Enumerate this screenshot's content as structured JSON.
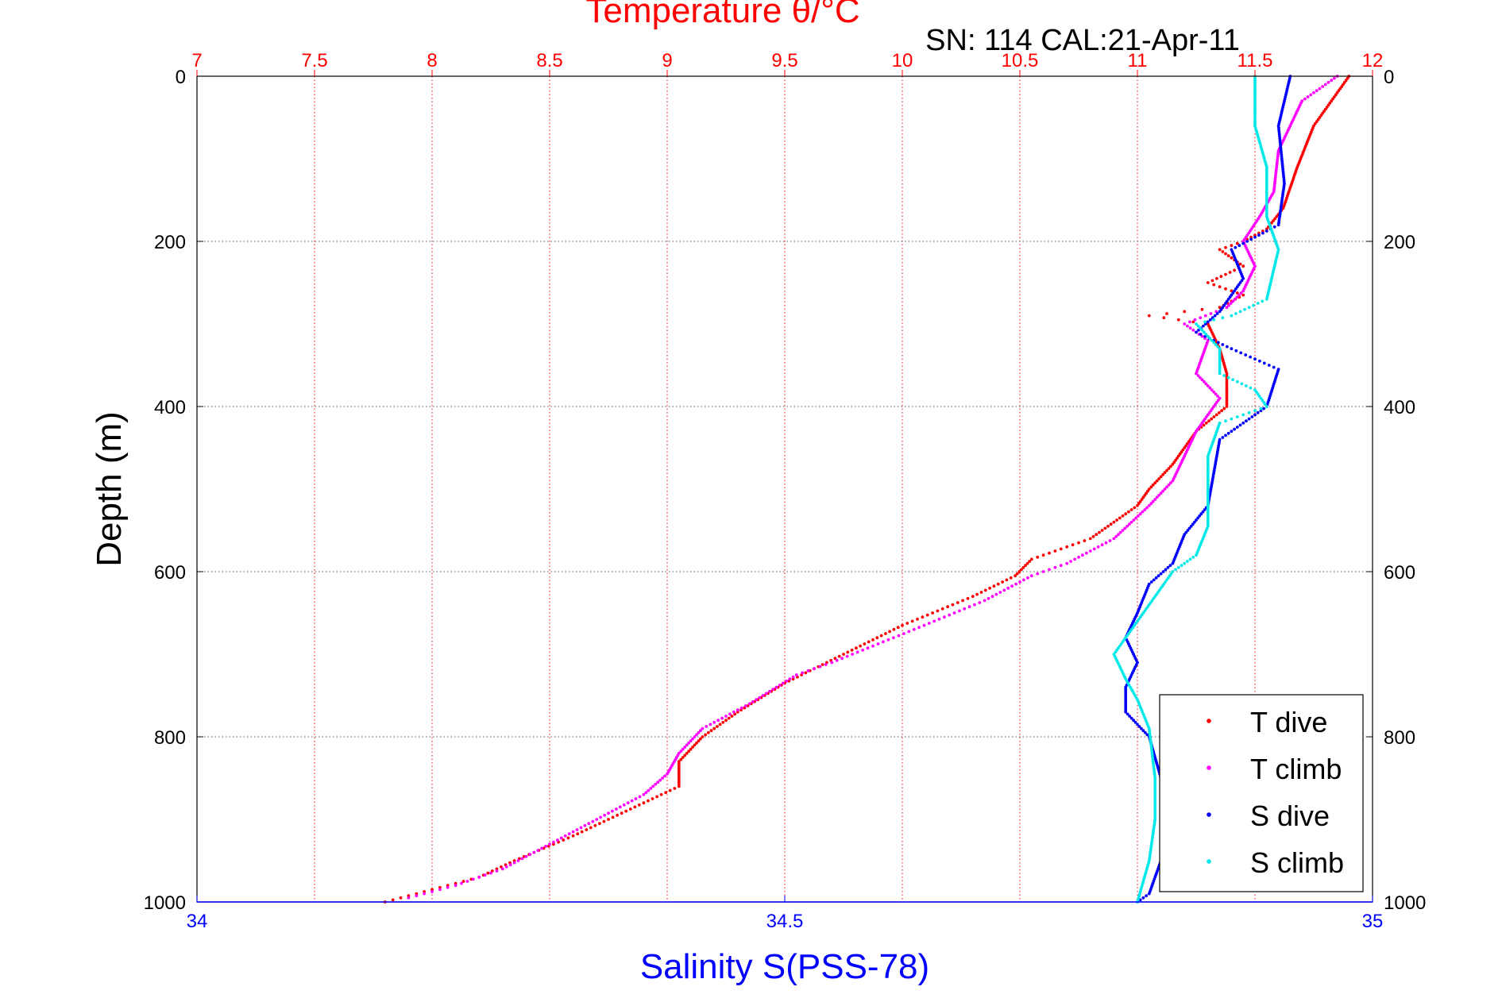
{
  "chart_data": {
    "type": "scatter",
    "top_title": "Temperature θ/°C",
    "subtitle": "SN: 114  CAL:21-Apr-11",
    "ylabel": "Depth (m)",
    "xlabel_bottom": "Salinity S(PSS-78)",
    "ylim": [
      0,
      1000
    ],
    "y_reversed": true,
    "y_ticks": [
      0,
      200,
      400,
      600,
      800,
      1000
    ],
    "temp_xlim": [
      7,
      12
    ],
    "temp_ticks": [
      7,
      7.5,
      8,
      8.5,
      9,
      9.5,
      10,
      10.5,
      11,
      11.5,
      12
    ],
    "sal_xlim": [
      34,
      35
    ],
    "sal_ticks": [
      34,
      34.5,
      35
    ],
    "grid": true,
    "legend_position": "bottom-right",
    "colors": {
      "temperature_axis": "#ff0000",
      "salinity_axis": "#0000ff",
      "t_dive": "#ff0000",
      "t_climb": "#ff00ff",
      "s_dive": "#0000ff",
      "s_climb": "#00e8e8"
    },
    "series": [
      {
        "name": "T dive",
        "axis": "temperature",
        "color_key": "t_dive",
        "points": [
          [
            11.9,
            0
          ],
          [
            11.85,
            20
          ],
          [
            11.75,
            60
          ],
          [
            11.68,
            110
          ],
          [
            11.62,
            160
          ],
          [
            11.55,
            185
          ],
          [
            11.45,
            200
          ],
          [
            11.35,
            210
          ],
          [
            11.45,
            230
          ],
          [
            11.3,
            250
          ],
          [
            11.45,
            265
          ],
          [
            11.35,
            280
          ],
          [
            11.05,
            290
          ],
          [
            11.3,
            300
          ],
          [
            11.35,
            330
          ],
          [
            11.38,
            360
          ],
          [
            11.38,
            400
          ],
          [
            11.25,
            430
          ],
          [
            11.15,
            470
          ],
          [
            11.05,
            500
          ],
          [
            11.0,
            520
          ],
          [
            10.8,
            560
          ],
          [
            10.55,
            585
          ],
          [
            10.48,
            605
          ],
          [
            10.3,
            630
          ],
          [
            10.0,
            665
          ],
          [
            9.75,
            700
          ],
          [
            9.5,
            735
          ],
          [
            9.3,
            770
          ],
          [
            9.15,
            800
          ],
          [
            9.05,
            830
          ],
          [
            9.05,
            860
          ],
          [
            8.9,
            880
          ],
          [
            8.75,
            900
          ],
          [
            8.6,
            920
          ],
          [
            8.35,
            950
          ],
          [
            8.2,
            970
          ],
          [
            8.0,
            985
          ],
          [
            7.8,
            1000
          ]
        ]
      },
      {
        "name": "T climb",
        "axis": "temperature",
        "color_key": "t_climb",
        "points": [
          [
            11.85,
            0
          ],
          [
            11.7,
            30
          ],
          [
            11.6,
            90
          ],
          [
            11.58,
            140
          ],
          [
            11.52,
            170
          ],
          [
            11.45,
            200
          ],
          [
            11.5,
            230
          ],
          [
            11.45,
            260
          ],
          [
            11.38,
            280
          ],
          [
            11.2,
            300
          ],
          [
            11.3,
            320
          ],
          [
            11.25,
            360
          ],
          [
            11.35,
            390
          ],
          [
            11.25,
            430
          ],
          [
            11.15,
            490
          ],
          [
            11.05,
            520
          ],
          [
            10.9,
            560
          ],
          [
            10.7,
            590
          ],
          [
            10.55,
            605
          ],
          [
            10.35,
            635
          ],
          [
            10.05,
            670
          ],
          [
            9.7,
            710
          ],
          [
            9.55,
            725
          ],
          [
            9.35,
            760
          ],
          [
            9.15,
            790
          ],
          [
            9.05,
            820
          ],
          [
            9.0,
            845
          ],
          [
            8.9,
            870
          ],
          [
            8.7,
            900
          ],
          [
            8.5,
            930
          ],
          [
            8.3,
            960
          ],
          [
            8.1,
            980
          ],
          [
            7.9,
            995
          ]
        ]
      },
      {
        "name": "S dive",
        "axis": "salinity",
        "color_key": "s_dive",
        "points": [
          [
            34.93,
            0
          ],
          [
            34.92,
            60
          ],
          [
            34.925,
            130
          ],
          [
            34.92,
            180
          ],
          [
            34.88,
            210
          ],
          [
            34.89,
            245
          ],
          [
            34.87,
            285
          ],
          [
            34.85,
            310
          ],
          [
            34.88,
            330
          ],
          [
            34.92,
            355
          ],
          [
            34.91,
            400
          ],
          [
            34.87,
            440
          ],
          [
            34.865,
            480
          ],
          [
            34.86,
            520
          ],
          [
            34.84,
            555
          ],
          [
            34.83,
            590
          ],
          [
            34.81,
            615
          ],
          [
            34.8,
            650
          ],
          [
            34.79,
            680
          ],
          [
            34.8,
            710
          ],
          [
            34.79,
            740
          ],
          [
            34.79,
            770
          ],
          [
            34.81,
            800
          ],
          [
            34.82,
            850
          ],
          [
            34.82,
            900
          ],
          [
            34.82,
            950
          ],
          [
            34.81,
            990
          ],
          [
            34.8,
            1000
          ]
        ]
      },
      {
        "name": "S climb",
        "axis": "salinity",
        "color_key": "s_climb",
        "points": [
          [
            34.9,
            0
          ],
          [
            34.9,
            60
          ],
          [
            34.91,
            110
          ],
          [
            34.91,
            170
          ],
          [
            34.92,
            210
          ],
          [
            34.91,
            270
          ],
          [
            34.88,
            290
          ],
          [
            34.85,
            300
          ],
          [
            34.87,
            330
          ],
          [
            34.87,
            360
          ],
          [
            34.9,
            380
          ],
          [
            34.91,
            400
          ],
          [
            34.87,
            420
          ],
          [
            34.86,
            460
          ],
          [
            34.86,
            500
          ],
          [
            34.86,
            545
          ],
          [
            34.85,
            580
          ],
          [
            34.83,
            600
          ],
          [
            34.81,
            640
          ],
          [
            34.795,
            670
          ],
          [
            34.78,
            700
          ],
          [
            34.79,
            730
          ],
          [
            34.8,
            755
          ],
          [
            34.81,
            790
          ],
          [
            34.815,
            850
          ],
          [
            34.815,
            900
          ],
          [
            34.81,
            950
          ],
          [
            34.8,
            1000
          ]
        ]
      }
    ]
  }
}
